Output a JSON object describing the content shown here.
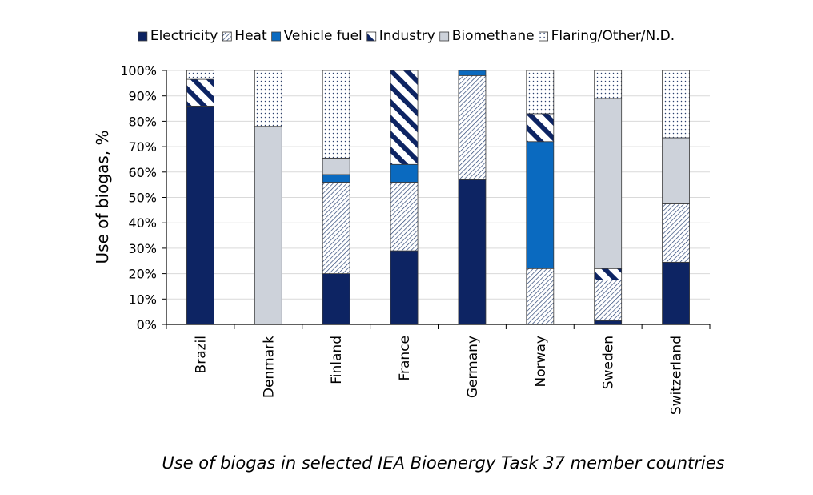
{
  "chart_data": {
    "type": "bar",
    "stacked": true,
    "caption": "Use of biogas in selected IEA Bioenergy Task 37 member countries",
    "ylabel": "Use of biogas, %",
    "xlabel": "",
    "ylim": [
      0,
      100
    ],
    "yticks": [
      0,
      10,
      20,
      30,
      40,
      50,
      60,
      70,
      80,
      90,
      100
    ],
    "ytick_suffix": "%",
    "grid": true,
    "legend_position": "top",
    "categories": [
      "Brazil",
      "Denmark",
      "Finland",
      "France",
      "Germany",
      "Norway",
      "Sweden",
      "Switzerland"
    ],
    "series": [
      {
        "name": "Electricity",
        "color": "#0d2463",
        "pattern": "solid",
        "values": [
          86,
          0,
          20,
          29,
          57,
          0,
          1.5,
          24.5
        ]
      },
      {
        "name": "Heat",
        "color": "#1f3a6e",
        "pattern": "diagonal-hatch",
        "values": [
          0,
          0,
          36,
          27,
          41,
          22,
          16,
          23
        ]
      },
      {
        "name": "Vehicle fuel",
        "color": "#0a6ac0",
        "pattern": "solid",
        "values": [
          0,
          0,
          3,
          7,
          2,
          50,
          0,
          0
        ]
      },
      {
        "name": "Industry",
        "color": "#0d2463",
        "pattern": "wide-diagonal-stripes",
        "values": [
          10.5,
          0,
          0,
          37,
          0,
          11,
          4.5,
          0
        ]
      },
      {
        "name": "Biomethane",
        "color": "#cdd2da",
        "pattern": "solid",
        "values": [
          0,
          78,
          6.5,
          0,
          0,
          0,
          67,
          26
        ]
      },
      {
        "name": "Flaring/Other/N.D.",
        "color": "#2a3f6e",
        "pattern": "dots",
        "values": [
          3.5,
          22,
          34.5,
          0,
          0,
          17,
          11,
          26.5
        ]
      }
    ]
  }
}
